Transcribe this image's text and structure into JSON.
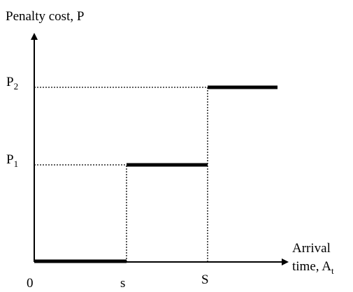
{
  "chart_data": {
    "type": "line",
    "title": "",
    "ylabel": "Penalty cost, P",
    "xlabel_line1": "Arrival",
    "xlabel_line2_main": "time, A",
    "xlabel_line2_sub": "t",
    "x_ticks": [
      {
        "label": "0",
        "value": 0
      },
      {
        "label": "s",
        "value": 1
      },
      {
        "label": "S",
        "value": 2
      }
    ],
    "y_ticks": [
      {
        "main": "P",
        "sub": "1",
        "value": 1
      },
      {
        "main": "P",
        "sub": "2",
        "value": 2
      }
    ],
    "xlim": [
      0,
      3
    ],
    "ylim": [
      0,
      2.6
    ],
    "grid": false,
    "series": [
      {
        "segments": [
          {
            "x0": 0,
            "x1": 1,
            "y": 0
          },
          {
            "x0": 1,
            "x1": 2,
            "y": 1
          },
          {
            "x0": 2,
            "x1": 3,
            "y": 2
          }
        ]
      }
    ],
    "guides": [
      {
        "kind": "horizontal",
        "y": 1,
        "x_to": 1
      },
      {
        "kind": "horizontal",
        "y": 2,
        "x_to": 2
      },
      {
        "kind": "vertical",
        "x": 1,
        "y_to": 1
      },
      {
        "kind": "vertical",
        "x": 2,
        "y_to": 2
      }
    ],
    "colors": {
      "line": "#000000",
      "axis": "#000000"
    }
  }
}
